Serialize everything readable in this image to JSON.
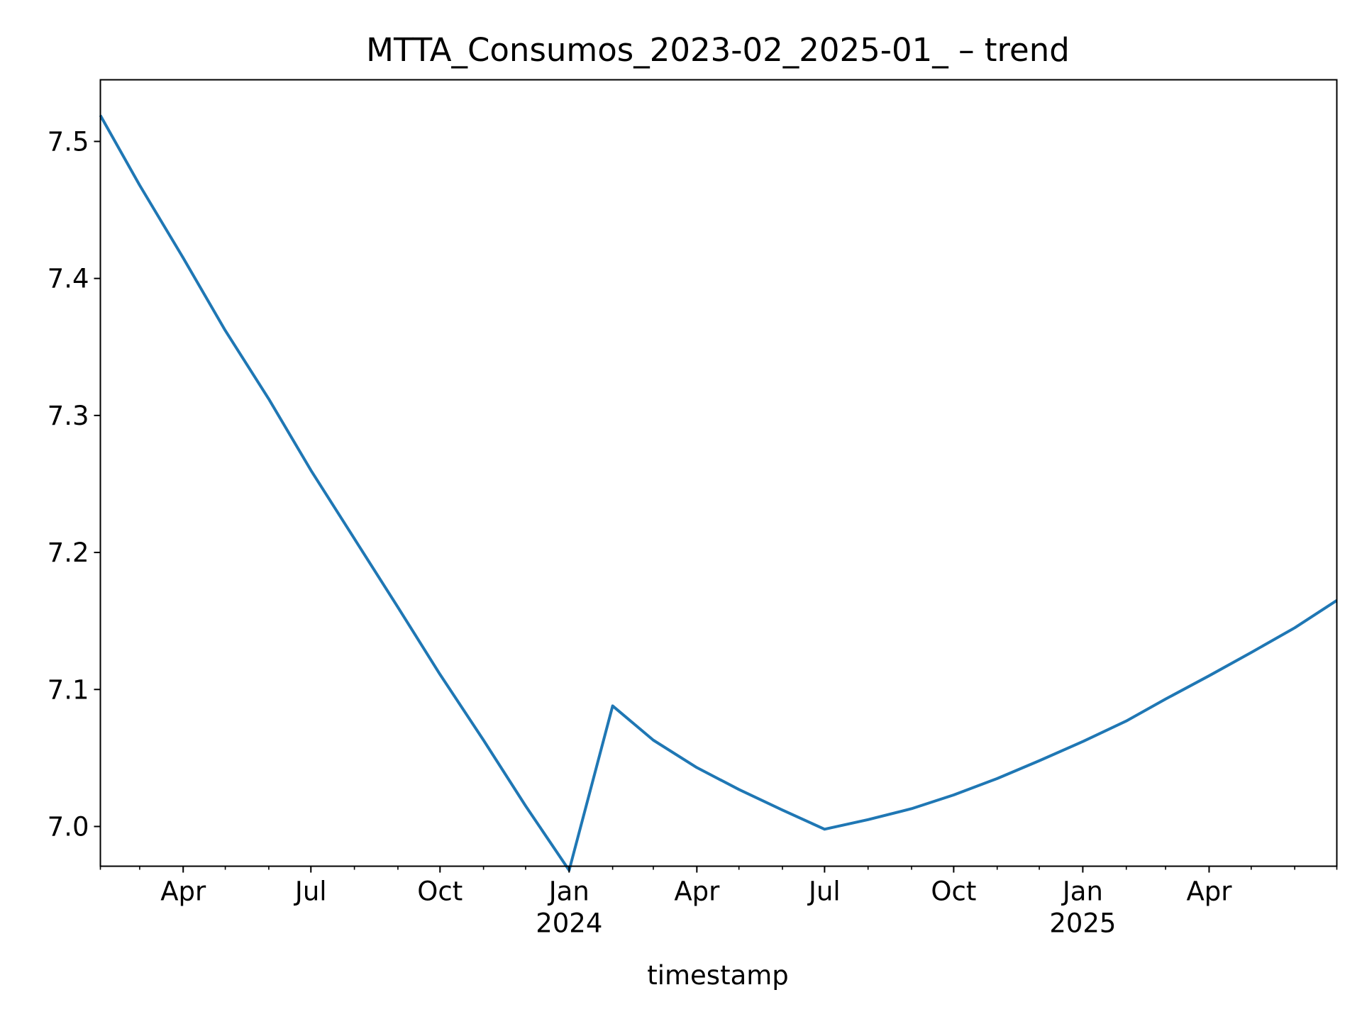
{
  "chart_data": {
    "type": "line",
    "title": "MTTA_Consumos_2023-02_2025-01_ – trend",
    "xlabel": "timestamp",
    "ylabel": "",
    "xlim": [
      "2023-02-01",
      "2025-07-01"
    ],
    "ylim": [
      6.971,
      7.545
    ],
    "grid": false,
    "legend": "none",
    "line_color": "#1f77b4",
    "x_ticks": [
      {
        "date": "2023-04-01",
        "label": "Apr",
        "sublabel": ""
      },
      {
        "date": "2023-07-01",
        "label": "Jul",
        "sublabel": ""
      },
      {
        "date": "2023-10-01",
        "label": "Oct",
        "sublabel": ""
      },
      {
        "date": "2024-01-01",
        "label": "Jan",
        "sublabel": "2024"
      },
      {
        "date": "2024-04-01",
        "label": "Apr",
        "sublabel": ""
      },
      {
        "date": "2024-07-01",
        "label": "Jul",
        "sublabel": ""
      },
      {
        "date": "2024-10-01",
        "label": "Oct",
        "sublabel": ""
      },
      {
        "date": "2025-01-01",
        "label": "Jan",
        "sublabel": "2025"
      },
      {
        "date": "2025-04-01",
        "label": "Apr",
        "sublabel": ""
      }
    ],
    "y_ticks": [
      {
        "value": 7.0,
        "label": "7.0"
      },
      {
        "value": 7.1,
        "label": "7.1"
      },
      {
        "value": 7.2,
        "label": "7.2"
      },
      {
        "value": 7.3,
        "label": "7.3"
      },
      {
        "value": 7.4,
        "label": "7.4"
      },
      {
        "value": 7.5,
        "label": "7.5"
      }
    ],
    "series": [
      {
        "x": [
          "2023-02-01",
          "2023-03-01",
          "2023-04-01",
          "2023-05-01",
          "2023-06-01",
          "2023-07-01",
          "2023-08-01",
          "2023-09-01",
          "2023-10-01",
          "2023-11-01",
          "2023-12-01",
          "2024-01-01",
          "2024-02-01",
          "2024-03-01",
          "2024-04-01",
          "2024-05-01",
          "2024-06-01",
          "2024-07-01",
          "2024-08-01",
          "2024-09-01",
          "2024-10-01",
          "2024-11-01",
          "2024-12-01",
          "2025-01-01",
          "2025-02-01",
          "2025-03-01",
          "2025-04-01",
          "2025-05-01",
          "2025-06-01",
          "2025-07-01"
        ],
        "y": [
          7.519,
          7.468,
          7.415,
          7.362,
          7.312,
          7.26,
          7.21,
          7.16,
          7.111,
          7.063,
          7.015,
          6.968,
          7.088,
          7.063,
          7.043,
          7.027,
          7.012,
          6.998,
          7.005,
          7.013,
          7.023,
          7.035,
          7.048,
          7.062,
          7.077,
          7.093,
          7.11,
          7.127,
          7.145,
          7.165
        ]
      }
    ]
  }
}
